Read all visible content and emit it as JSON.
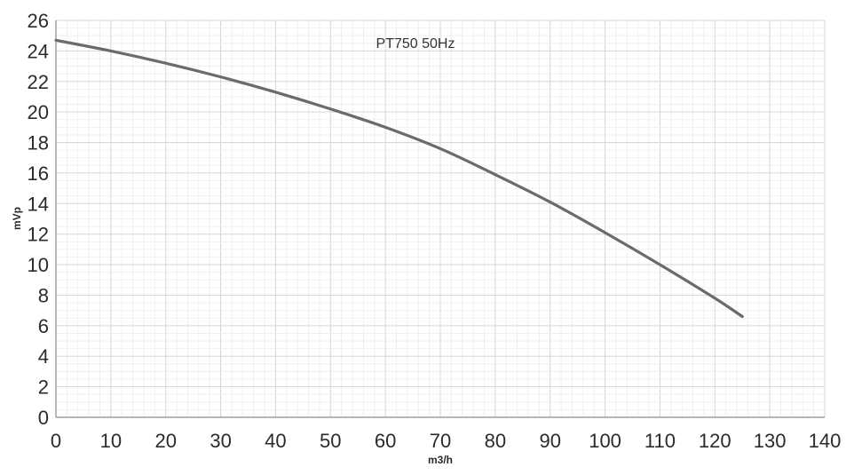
{
  "chart_data": {
    "type": "line",
    "title": "PT750 50Hz",
    "xlabel": "m3/h",
    "ylabel": "mVp",
    "xlim": [
      0,
      140
    ],
    "ylim": [
      0,
      26
    ],
    "x_ticks": [
      "0",
      "10",
      "20",
      "30",
      "40",
      "50",
      "60",
      "70",
      "80",
      "90",
      "100",
      "110",
      "120",
      "130",
      "140"
    ],
    "y_ticks": [
      "0",
      "2",
      "4",
      "6",
      "8",
      "10",
      "12",
      "14",
      "16",
      "18",
      "20",
      "22",
      "24",
      "26"
    ],
    "grid": true,
    "series": [
      {
        "name": "PT750 50Hz",
        "color": "#6b6b6b",
        "x": [
          0,
          10,
          20,
          30,
          40,
          50,
          60,
          70,
          80,
          90,
          100,
          110,
          120,
          125
        ],
        "y": [
          24.7,
          24.0,
          23.2,
          22.3,
          21.3,
          20.2,
          19.0,
          17.6,
          15.9,
          14.1,
          12.1,
          10.0,
          7.8,
          6.6
        ]
      }
    ]
  }
}
